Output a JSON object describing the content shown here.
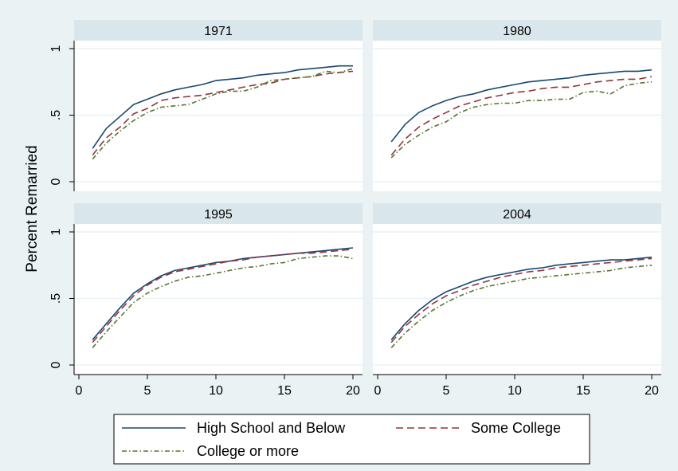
{
  "chart_data": {
    "type": "line",
    "ylabel": "Percent Remarried",
    "xlabel": "",
    "xlim": [
      0,
      20
    ],
    "ylim": [
      0,
      1
    ],
    "xticks": [
      0,
      5,
      10,
      15,
      20
    ],
    "yticks": [
      0,
      0.5,
      1
    ],
    "ytick_labels": [
      "0",
      ".5",
      "1"
    ],
    "grid": true,
    "legend_position": "bottom",
    "legend_entries": [
      "High School and Below",
      "Some College",
      "College or more"
    ],
    "series_styles": [
      {
        "color": "#1a476f",
        "dash": "solid"
      },
      {
        "color": "#90353b",
        "dash": "dashed"
      },
      {
        "color": "#55752f",
        "dash": "dash-dot"
      }
    ],
    "x": [
      1,
      2,
      3,
      4,
      5,
      6,
      7,
      8,
      9,
      10,
      11,
      12,
      13,
      14,
      15,
      16,
      17,
      18,
      19,
      20
    ],
    "panels": [
      {
        "title": "1971",
        "series": [
          {
            "name": "High School and Below",
            "values": [
              0.25,
              0.4,
              0.49,
              0.58,
              0.62,
              0.66,
              0.69,
              0.71,
              0.73,
              0.76,
              0.77,
              0.78,
              0.8,
              0.81,
              0.82,
              0.84,
              0.85,
              0.86,
              0.87,
              0.87
            ]
          },
          {
            "name": "Some College",
            "values": [
              0.2,
              0.33,
              0.41,
              0.51,
              0.55,
              0.61,
              0.63,
              0.64,
              0.65,
              0.67,
              0.69,
              0.71,
              0.73,
              0.74,
              0.77,
              0.78,
              0.79,
              0.81,
              0.82,
              0.83
            ]
          },
          {
            "name": "College or more",
            "values": [
              0.17,
              0.29,
              0.38,
              0.46,
              0.52,
              0.56,
              0.57,
              0.58,
              0.62,
              0.66,
              0.68,
              0.68,
              0.71,
              0.76,
              0.77,
              0.78,
              0.79,
              0.83,
              0.82,
              0.85
            ]
          }
        ]
      },
      {
        "title": "1980",
        "series": [
          {
            "name": "High School and Below",
            "values": [
              0.3,
              0.43,
              0.52,
              0.57,
              0.61,
              0.64,
              0.66,
              0.69,
              0.71,
              0.73,
              0.75,
              0.76,
              0.77,
              0.78,
              0.8,
              0.81,
              0.82,
              0.83,
              0.83,
              0.84
            ]
          },
          {
            "name": "Some College",
            "values": [
              0.2,
              0.32,
              0.41,
              0.47,
              0.52,
              0.57,
              0.6,
              0.63,
              0.65,
              0.67,
              0.68,
              0.7,
              0.71,
              0.71,
              0.73,
              0.75,
              0.76,
              0.77,
              0.77,
              0.79
            ]
          },
          {
            "name": "College or more",
            "values": [
              0.18,
              0.28,
              0.35,
              0.41,
              0.45,
              0.52,
              0.56,
              0.58,
              0.59,
              0.59,
              0.61,
              0.61,
              0.62,
              0.62,
              0.67,
              0.68,
              0.66,
              0.72,
              0.74,
              0.75
            ]
          }
        ]
      },
      {
        "title": "1995",
        "series": [
          {
            "name": "High School and Below",
            "values": [
              0.19,
              0.31,
              0.43,
              0.54,
              0.61,
              0.67,
              0.71,
              0.73,
              0.75,
              0.77,
              0.78,
              0.8,
              0.81,
              0.82,
              0.83,
              0.84,
              0.85,
              0.86,
              0.87,
              0.88
            ]
          },
          {
            "name": "Some College",
            "values": [
              0.17,
              0.29,
              0.41,
              0.52,
              0.6,
              0.66,
              0.7,
              0.72,
              0.74,
              0.76,
              0.78,
              0.79,
              0.81,
              0.82,
              0.83,
              0.84,
              0.84,
              0.85,
              0.86,
              0.87
            ]
          },
          {
            "name": "College or more",
            "values": [
              0.13,
              0.25,
              0.36,
              0.47,
              0.54,
              0.59,
              0.63,
              0.66,
              0.67,
              0.69,
              0.71,
              0.73,
              0.74,
              0.76,
              0.77,
              0.8,
              0.81,
              0.82,
              0.82,
              0.8
            ]
          }
        ]
      },
      {
        "title": "2004",
        "series": [
          {
            "name": "High School and Below",
            "values": [
              0.19,
              0.31,
              0.41,
              0.49,
              0.55,
              0.59,
              0.63,
              0.66,
              0.68,
              0.7,
              0.72,
              0.73,
              0.75,
              0.76,
              0.77,
              0.78,
              0.79,
              0.79,
              0.8,
              0.81
            ]
          },
          {
            "name": "Some College",
            "values": [
              0.17,
              0.29,
              0.38,
              0.46,
              0.52,
              0.56,
              0.6,
              0.63,
              0.66,
              0.68,
              0.7,
              0.71,
              0.73,
              0.74,
              0.75,
              0.76,
              0.77,
              0.78,
              0.79,
              0.8
            ]
          },
          {
            "name": "College or more",
            "values": [
              0.13,
              0.24,
              0.33,
              0.41,
              0.47,
              0.52,
              0.56,
              0.59,
              0.61,
              0.63,
              0.65,
              0.66,
              0.67,
              0.68,
              0.69,
              0.7,
              0.71,
              0.73,
              0.74,
              0.75
            ]
          }
        ]
      }
    ]
  }
}
